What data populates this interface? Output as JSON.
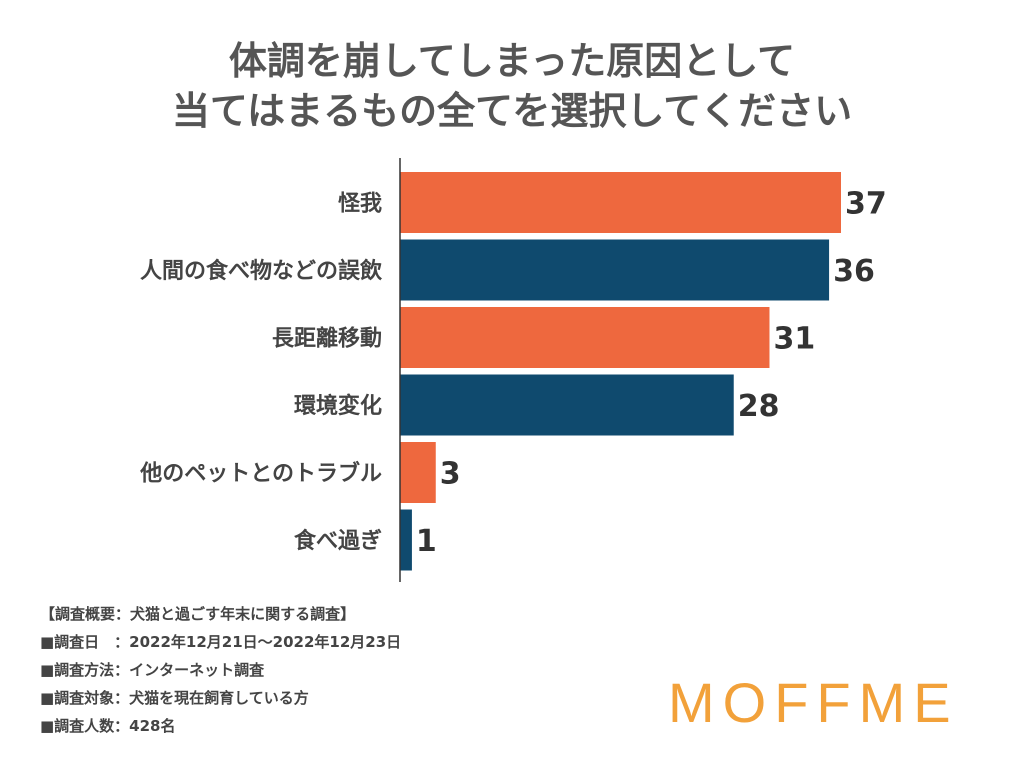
{
  "title_lines": [
    "体調を崩してしまった原因として",
    "当てはまるもの全てを選択してください"
  ],
  "chart_data": {
    "type": "bar",
    "orientation": "horizontal",
    "categories": [
      "怪我",
      "人間の食べ物などの誤飲",
      "長距離移動",
      "環境変化",
      "他のペットとのトラブル",
      "食べ過ぎ"
    ],
    "values": [
      37,
      36,
      31,
      28,
      3,
      1
    ],
    "colors": [
      "#ee683e",
      "#0f4a6e",
      "#ee683e",
      "#0f4a6e",
      "#ee683e",
      "#0f4a6e"
    ],
    "xlim": [
      0,
      37
    ],
    "grid": false,
    "data_labels": true
  },
  "notes": [
    "【調査概要：犬猫と過ごす年末に関する調査】",
    "■調査日　：2022年12月21日〜2022年12月23日",
    "■調査方法：インターネット調査",
    "■調査対象：犬猫を現在飼育している方",
    "■調査人数：428名"
  ],
  "logo_text": "MOFFME"
}
